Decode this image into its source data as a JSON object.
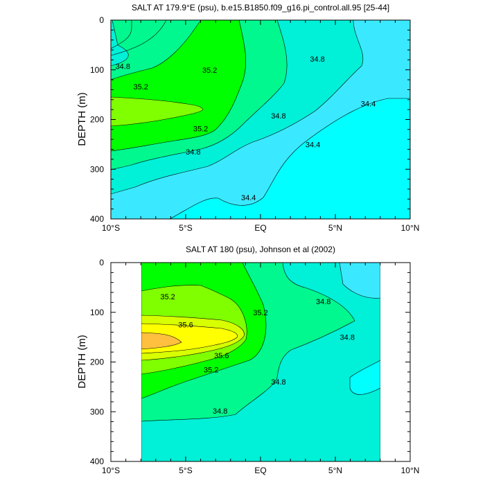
{
  "chart_data": [
    {
      "type": "contour",
      "title": "SALT AT 179.9°E (psu), b.e15.B1850.f09_g16.pi_control.all.95 [25-44]",
      "ylabel": "DEPTH (m)",
      "xlim": [
        -10,
        10
      ],
      "ylim": [
        400,
        0
      ],
      "x_ticks": [
        {
          "value": -10,
          "label": "10°S"
        },
        {
          "value": -5,
          "label": "5°S"
        },
        {
          "value": 0,
          "label": "EQ"
        },
        {
          "value": 5,
          "label": "5°N"
        },
        {
          "value": 10,
          "label": "10°N"
        }
      ],
      "y_ticks": [
        {
          "value": 0,
          "label": "0"
        },
        {
          "value": 100,
          "label": "100"
        },
        {
          "value": 200,
          "label": "200"
        },
        {
          "value": 300,
          "label": "300"
        },
        {
          "value": 400,
          "label": "400"
        }
      ],
      "contour_labels": [
        {
          "text": "34.8",
          "x": -9.2,
          "y": 93
        },
        {
          "text": "35.2",
          "x": -8.0,
          "y": 134
        },
        {
          "text": "35.2",
          "x": -3.4,
          "y": 100
        },
        {
          "text": "34.8",
          "x": 3.8,
          "y": 78
        },
        {
          "text": "34.8",
          "x": 1.2,
          "y": 192
        },
        {
          "text": "35.2",
          "x": -4.0,
          "y": 218
        },
        {
          "text": "34.8",
          "x": -4.5,
          "y": 265
        },
        {
          "text": "34.4",
          "x": 7.2,
          "y": 168
        },
        {
          "text": "34.4",
          "x": 3.5,
          "y": 250
        },
        {
          "text": "34.4",
          "x": -0.8,
          "y": 357
        }
      ],
      "colors": {
        "lt34.4": "#00ffff",
        "34.4-34.6": "#3ae9ff",
        "34.6-34.8": "#00f0d8",
        "34.8-35.0": "#00f88f",
        "35.0-35.2": "#00ff00",
        "35.2-35.4": "#7fff00",
        "35.4-35.6": "#d8ff00",
        "35.6-35.8": "#ffff00",
        "gt35.8": "#ffc040"
      }
    },
    {
      "type": "contour",
      "title": "SALT AT 180 (psu), Johnson et al (2002)",
      "ylabel": "DEPTH (m)",
      "xlim": [
        -10,
        10
      ],
      "ylim": [
        400,
        0
      ],
      "data_xrange": [
        -8,
        8
      ],
      "x_ticks": [
        {
          "value": -10,
          "label": "10°S"
        },
        {
          "value": -5,
          "label": "5°S"
        },
        {
          "value": 0,
          "label": "EQ"
        },
        {
          "value": 5,
          "label": "5°N"
        },
        {
          "value": 10,
          "label": "10°N"
        }
      ],
      "y_ticks": [
        {
          "value": 0,
          "label": "0"
        },
        {
          "value": 100,
          "label": "100"
        },
        {
          "value": 200,
          "label": "200"
        },
        {
          "value": 300,
          "label": "300"
        },
        {
          "value": 400,
          "label": "400"
        }
      ],
      "contour_labels": [
        {
          "text": "35.2",
          "x": -6.2,
          "y": 68
        },
        {
          "text": "35.6",
          "x": -5.0,
          "y": 125
        },
        {
          "text": "35.2",
          "x": 0.0,
          "y": 100
        },
        {
          "text": "34.8",
          "x": 4.2,
          "y": 78
        },
        {
          "text": "34.8",
          "x": 5.8,
          "y": 150
        },
        {
          "text": "35.6",
          "x": -2.6,
          "y": 187
        },
        {
          "text": "35.2",
          "x": -3.3,
          "y": 215
        },
        {
          "text": "34.8",
          "x": 1.2,
          "y": 240
        },
        {
          "text": "34.8",
          "x": -2.7,
          "y": 298
        }
      ]
    }
  ]
}
